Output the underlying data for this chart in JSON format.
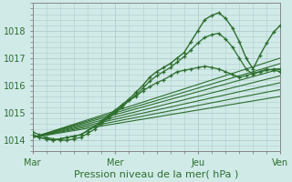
{
  "bg_color": "#d0eae8",
  "grid_color": "#b0cccc",
  "line_color": "#2d6e2d",
  "marker_color": "#2d6e2d",
  "xlabel": "Pression niveau de la mer( hPa )",
  "ylim": [
    1013.6,
    1019.0
  ],
  "yticks": [
    1014,
    1015,
    1016,
    1017,
    1018
  ],
  "xlim": [
    0,
    72
  ],
  "xtick_positions": [
    0,
    24,
    48,
    72
  ],
  "xtick_labels": [
    "Mar",
    "Mer",
    "Jeu",
    "Ven"
  ],
  "tick_fontsize": 7,
  "label_fontsize": 8,
  "series": [
    {
      "x": [
        0,
        2,
        4,
        6,
        8,
        10,
        12,
        14,
        16,
        18,
        20,
        22,
        24,
        26,
        28,
        30,
        32,
        34,
        36,
        38,
        40,
        42,
        44,
        46,
        48,
        50,
        52,
        54,
        56,
        58,
        60,
        62,
        64,
        66,
        68,
        70,
        72
      ],
      "y": [
        1014.2,
        1014.1,
        1014.05,
        1014.0,
        1014.05,
        1014.1,
        1014.15,
        1014.2,
        1014.35,
        1014.5,
        1014.7,
        1014.9,
        1015.1,
        1015.3,
        1015.5,
        1015.75,
        1016.0,
        1016.3,
        1016.5,
        1016.65,
        1016.8,
        1017.0,
        1017.2,
        1017.6,
        1018.0,
        1018.4,
        1018.55,
        1018.65,
        1018.45,
        1018.1,
        1017.6,
        1017.0,
        1016.6,
        1017.1,
        1017.55,
        1017.95,
        1018.2
      ],
      "with_markers": true,
      "linewidth": 1.0
    },
    {
      "x": [
        0,
        2,
        4,
        6,
        8,
        10,
        12,
        14,
        16,
        18,
        20,
        22,
        24,
        26,
        28,
        30,
        32,
        34,
        36,
        38,
        40,
        42,
        44,
        46,
        48,
        50,
        52,
        54,
        56,
        58,
        60,
        62,
        64,
        66,
        68,
        70,
        72
      ],
      "y": [
        1014.2,
        1014.1,
        1014.05,
        1014.0,
        1014.05,
        1014.1,
        1014.15,
        1014.2,
        1014.35,
        1014.5,
        1014.65,
        1014.85,
        1015.05,
        1015.25,
        1015.45,
        1015.65,
        1015.9,
        1016.15,
        1016.35,
        1016.5,
        1016.65,
        1016.85,
        1017.05,
        1017.3,
        1017.55,
        1017.75,
        1017.85,
        1017.9,
        1017.7,
        1017.4,
        1017.0,
        1016.6,
        1016.4,
        1016.5,
        1016.6,
        1016.55,
        1016.5
      ],
      "with_markers": true,
      "linewidth": 0.9
    },
    {
      "x": [
        0,
        72
      ],
      "y": [
        1014.1,
        1017.0
      ],
      "with_markers": false,
      "linewidth": 0.8
    },
    {
      "x": [
        0,
        72
      ],
      "y": [
        1014.1,
        1016.8
      ],
      "with_markers": false,
      "linewidth": 0.8
    },
    {
      "x": [
        0,
        72
      ],
      "y": [
        1014.1,
        1016.6
      ],
      "with_markers": false,
      "linewidth": 0.8
    },
    {
      "x": [
        0,
        72
      ],
      "y": [
        1014.1,
        1016.35
      ],
      "with_markers": false,
      "linewidth": 0.8
    },
    {
      "x": [
        0,
        72
      ],
      "y": [
        1014.1,
        1016.1
      ],
      "with_markers": false,
      "linewidth": 0.8
    },
    {
      "x": [
        0,
        72
      ],
      "y": [
        1014.1,
        1015.85
      ],
      "with_markers": false,
      "linewidth": 0.8
    },
    {
      "x": [
        0,
        72
      ],
      "y": [
        1014.1,
        1015.6
      ],
      "with_markers": false,
      "linewidth": 0.8
    },
    {
      "x": [
        0,
        2,
        4,
        6,
        8,
        10,
        12,
        14,
        16,
        18,
        20,
        22,
        24,
        26,
        28,
        30,
        32,
        34,
        36,
        38,
        40,
        42,
        44,
        46,
        48,
        50,
        52,
        54,
        56,
        58,
        60,
        62,
        64,
        66,
        68,
        70,
        72
      ],
      "y": [
        1014.3,
        1014.2,
        1014.1,
        1014.05,
        1014.0,
        1014.0,
        1014.05,
        1014.1,
        1014.25,
        1014.4,
        1014.6,
        1014.8,
        1015.0,
        1015.2,
        1015.45,
        1015.6,
        1015.8,
        1015.95,
        1016.1,
        1016.2,
        1016.35,
        1016.5,
        1016.55,
        1016.6,
        1016.65,
        1016.7,
        1016.65,
        1016.6,
        1016.5,
        1016.4,
        1016.3,
        1016.35,
        1016.45,
        1016.5,
        1016.55,
        1016.6,
        1016.6
      ],
      "with_markers": true,
      "linewidth": 0.9
    }
  ]
}
